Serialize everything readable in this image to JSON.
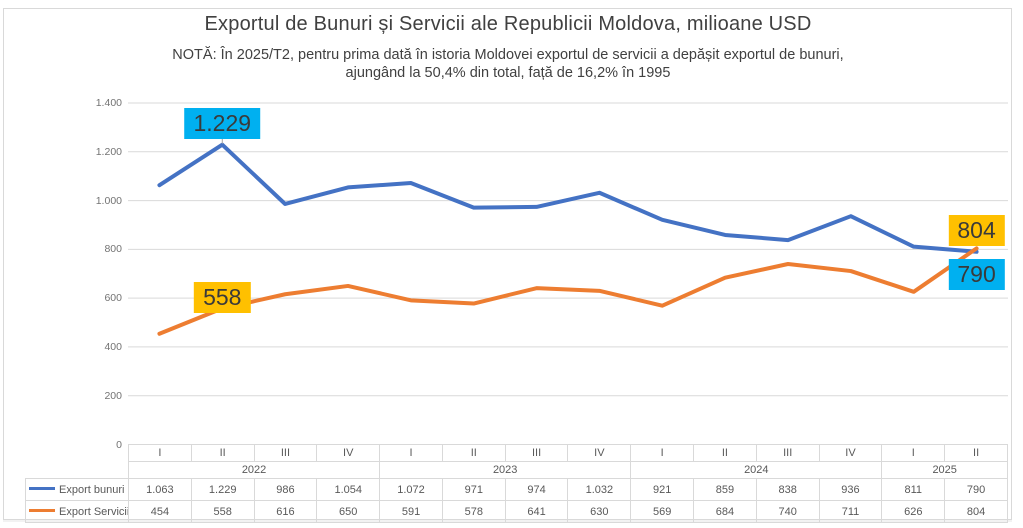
{
  "header": {
    "title": "Exportul de Bunuri și Servicii ale Republicii Moldova, milioane USD",
    "note_line1": "NOTĂ: În 2025/T2, pentru prima dată în istoria Moldovei exportul de servicii a depășit exportul de bunuri,",
    "note_line2": "ajungând la 50,4% din total, față de 16,2% în 1995"
  },
  "chart_data": {
    "type": "line",
    "x_quarters": [
      "I",
      "II",
      "III",
      "IV",
      "I",
      "II",
      "III",
      "IV",
      "I",
      "II",
      "III",
      "IV",
      "I",
      "II"
    ],
    "year_groups": [
      {
        "label": "2022",
        "span": 4
      },
      {
        "label": "2023",
        "span": 4
      },
      {
        "label": "2024",
        "span": 4
      },
      {
        "label": "2025",
        "span": 2
      }
    ],
    "series": [
      {
        "name": "Export bunuri",
        "color": "#4472C4",
        "values": [
          1063,
          1229,
          986,
          1054,
          1072,
          971,
          974,
          1032,
          921,
          859,
          838,
          936,
          811,
          790
        ]
      },
      {
        "name": "Export Servicii",
        "color": "#ED7D31",
        "values": [
          454,
          558,
          616,
          650,
          591,
          578,
          641,
          630,
          569,
          684,
          740,
          711,
          626,
          804
        ]
      }
    ],
    "ylim": [
      0,
      1400
    ],
    "y_tick_step": 200,
    "y_tick_labels": [
      "0",
      "200",
      "400",
      "600",
      "800",
      "1.000",
      "1.200",
      "1.400"
    ],
    "grid": "horizontal",
    "legend_position": "left-of-table-rows",
    "callouts": [
      {
        "series": 0,
        "index": 1,
        "text": "1.229",
        "bg": "#00B0F0",
        "placement": "above-leader"
      },
      {
        "series": 1,
        "index": 1,
        "text": "558",
        "bg": "#FFC000",
        "placement": "above-touch"
      },
      {
        "series": 1,
        "index": 13,
        "text": "804",
        "bg": "#FFC000",
        "placement": "above"
      },
      {
        "series": 0,
        "index": 13,
        "text": "790",
        "bg": "#00B0F0",
        "placement": "below"
      }
    ]
  },
  "colors": {
    "gridline": "#D9D9D9",
    "axis_text": "#737373",
    "table_text": "#595959",
    "table_border": "#D9D9D9",
    "title_text": "#404040",
    "callout_text": "#3A3A3A",
    "leader_line": "#A6A6A6",
    "frame_border": "#D9D9D9"
  }
}
